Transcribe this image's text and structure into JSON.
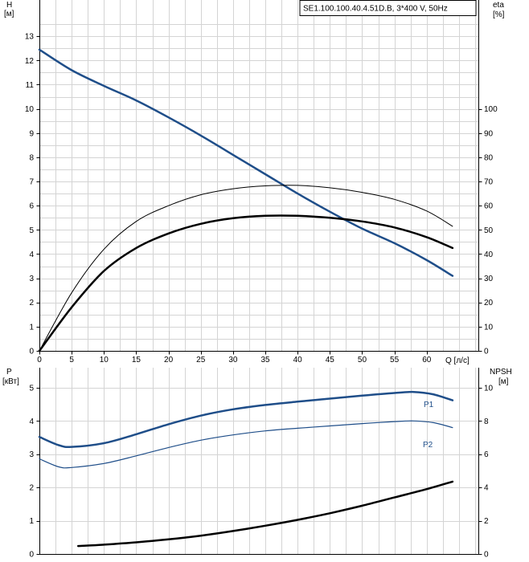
{
  "chart_data": [
    {
      "type": "line",
      "title": "SE1.100.100.40.4.51D.B, 3*400 V, 50Hz",
      "xlabel": "Q [л/с]",
      "ylabel_left": "H",
      "ylabel_left_unit": "[м]",
      "ylabel_right": "eta",
      "ylabel_right_unit": "[%]",
      "xlim": [
        0,
        68
      ],
      "ylim_left": [
        0,
        14.5
      ],
      "ylim_right": [
        0,
        145
      ],
      "x_ticks": [
        0,
        5,
        10,
        15,
        20,
        25,
        30,
        35,
        40,
        45,
        50,
        55,
        60
      ],
      "y_left_ticks": [
        0,
        1,
        2,
        3,
        4,
        5,
        6,
        7,
        8,
        9,
        10,
        11,
        12,
        13
      ],
      "y_right_ticks": [
        0,
        10,
        20,
        30,
        40,
        50,
        60,
        70,
        80,
        90,
        100
      ],
      "grid": true,
      "series": [
        {
          "axis": "left",
          "color": "#1f4e89",
          "width": 2.5,
          "x": [
            0,
            5,
            10,
            15,
            20,
            25,
            30,
            35,
            40,
            45,
            50,
            55,
            60,
            64
          ],
          "values": [
            12.45,
            11.6,
            10.95,
            10.35,
            9.65,
            8.9,
            8.1,
            7.3,
            6.5,
            5.75,
            5.05,
            4.45,
            3.75,
            3.1
          ]
        },
        {
          "axis": "right",
          "color": "#000000",
          "width": 1,
          "x": [
            0,
            5,
            10,
            15,
            20,
            25,
            30,
            35,
            40,
            45,
            50,
            55,
            60,
            64
          ],
          "values": [
            0,
            24,
            42,
            53.5,
            60,
            64.5,
            67,
            68.2,
            68.4,
            67.4,
            65.5,
            62.6,
            57.8,
            51.5
          ]
        },
        {
          "axis": "right",
          "color": "#000000",
          "width": 2.5,
          "x": [
            0,
            5,
            10,
            15,
            20,
            25,
            30,
            35,
            40,
            45,
            50,
            55,
            60,
            64
          ],
          "values": [
            0,
            18,
            33,
            42.5,
            48.5,
            52.5,
            54.8,
            55.8,
            55.8,
            55,
            53.5,
            51,
            47,
            42.5
          ]
        }
      ]
    },
    {
      "type": "line",
      "ylabel_left": "P",
      "ylabel_left_unit": "[кВт]",
      "ylabel_right": "NPSH",
      "ylabel_right_unit": "[м]",
      "xlim": [
        0,
        68
      ],
      "ylim_left": [
        0,
        5.6
      ],
      "ylim_right": [
        0,
        11.2
      ],
      "y_left_ticks": [
        0,
        1,
        2,
        3,
        4,
        5
      ],
      "y_right_ticks": [
        0,
        2,
        4,
        6,
        8,
        10
      ],
      "grid": true,
      "series": [
        {
          "name": "P1",
          "axis": "left",
          "color": "#1f4e89",
          "width": 2.5,
          "x": [
            0,
            3,
            5,
            10,
            15,
            20,
            25,
            30,
            35,
            40,
            45,
            50,
            55,
            58,
            61,
            64
          ],
          "values": [
            3.52,
            3.27,
            3.22,
            3.33,
            3.6,
            3.9,
            4.16,
            4.35,
            4.48,
            4.58,
            4.67,
            4.76,
            4.84,
            4.87,
            4.8,
            4.62
          ]
        },
        {
          "name": "P2",
          "axis": "left",
          "color": "#1f4e89",
          "width": 1.2,
          "x": [
            0,
            3,
            5,
            10,
            15,
            20,
            25,
            30,
            35,
            40,
            45,
            50,
            55,
            58,
            61,
            64
          ],
          "values": [
            2.86,
            2.62,
            2.6,
            2.72,
            2.95,
            3.2,
            3.42,
            3.58,
            3.7,
            3.78,
            3.85,
            3.92,
            3.98,
            4.0,
            3.95,
            3.8
          ]
        },
        {
          "axis": "right",
          "color": "#000000",
          "width": 2.5,
          "x": [
            6,
            10,
            15,
            20,
            25,
            30,
            35,
            40,
            45,
            50,
            55,
            60,
            64
          ],
          "values": [
            0.48,
            0.56,
            0.7,
            0.88,
            1.1,
            1.38,
            1.7,
            2.05,
            2.45,
            2.9,
            3.4,
            3.9,
            4.35
          ]
        }
      ]
    }
  ]
}
